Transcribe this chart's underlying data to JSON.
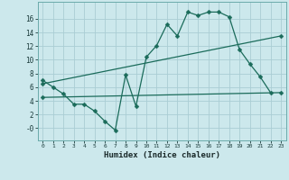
{
  "xlabel": "Humidex (Indice chaleur)",
  "bg_color": "#cce8ec",
  "line_color": "#1a6b5a",
  "grid_color": "#aacdd4",
  "xlim": [
    -0.5,
    23.5
  ],
  "ylim": [
    -1.8,
    18.5
  ],
  "yticks": [
    0,
    2,
    4,
    6,
    8,
    10,
    12,
    14,
    16
  ],
  "ytick_labels": [
    "-0",
    "2",
    "4",
    "6",
    "8",
    "10",
    "12",
    "14",
    "16"
  ],
  "xticks": [
    0,
    1,
    2,
    3,
    4,
    5,
    6,
    7,
    8,
    9,
    10,
    11,
    12,
    13,
    14,
    15,
    16,
    17,
    18,
    19,
    20,
    21,
    22,
    23
  ],
  "line1_x": [
    0,
    1,
    2,
    3,
    4,
    5,
    6,
    7,
    8,
    9,
    10,
    11,
    12,
    13,
    14,
    15,
    16,
    17,
    18,
    19,
    20,
    21,
    22
  ],
  "line1_y": [
    7.0,
    6.0,
    5.0,
    3.5,
    3.5,
    2.5,
    1.0,
    -0.3,
    7.8,
    3.2,
    10.4,
    12.1,
    15.2,
    13.5,
    17.0,
    16.5,
    17.0,
    17.0,
    16.3,
    11.5,
    9.4,
    7.5,
    5.2
  ],
  "line2_x": [
    0,
    23
  ],
  "line2_y": [
    6.5,
    13.5
  ],
  "line3_x": [
    0,
    23
  ],
  "line3_y": [
    4.5,
    5.2
  ],
  "marker_size": 2.5,
  "linewidth": 0.9
}
